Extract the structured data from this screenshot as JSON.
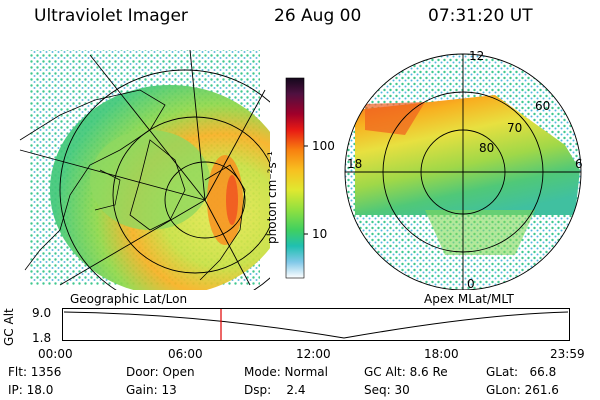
{
  "header": {
    "title": "Ultraviolet Imager",
    "date": "26 Aug 00",
    "time": "07:31:20 UT"
  },
  "colorbar": {
    "unit_label": "photon cm⁻²s⁻¹",
    "ticks": [
      "100",
      "10"
    ],
    "colors": [
      "#1a0a22",
      "#5a0a40",
      "#a0002a",
      "#e81a14",
      "#f87a10",
      "#f8c020",
      "#e0e830",
      "#90e040",
      "#40d060",
      "#20c0b0",
      "#60c8e8",
      "#b8e0f0",
      "#ffffff"
    ]
  },
  "left_map": {
    "caption": "Geographic Lat/Lon"
  },
  "right_map": {
    "caption": "Apex MLat/MLT",
    "mlt_labels": [
      "12",
      "18",
      "6",
      "0"
    ],
    "lat_labels": [
      "60",
      "70",
      "80"
    ]
  },
  "timeline": {
    "axis_label": "GC Alt",
    "y_ticks": [
      "9.0",
      "1.8"
    ],
    "x_ticks": [
      "00:00",
      "06:00",
      "12:00",
      "18:00",
      "23:59"
    ],
    "marker_time": "07:31"
  },
  "status": {
    "flt": "Flt: 1356",
    "ip": "IP: 18.0",
    "door": "Door: Open",
    "gain": "Gain: 13",
    "mode": "Mode: Normal",
    "dsp": "Dsp:    2.4",
    "gcalt": "GC Alt: 8.6 Re",
    "seq": "Seq: 30",
    "glat": "GLat:   66.8",
    "glon": "GLon: 261.6"
  }
}
